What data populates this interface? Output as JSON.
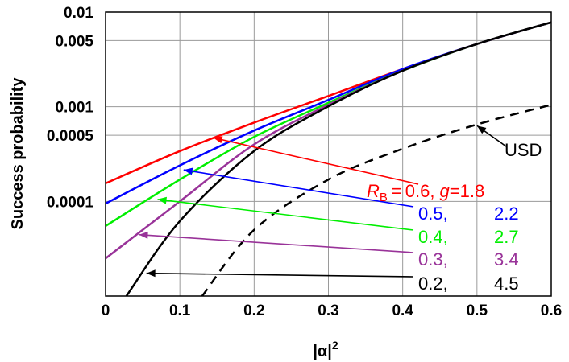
{
  "chart_data": {
    "type": "line",
    "xlabel": "|α|",
    "xlabel_sup": "2",
    "ylabel": "Success probability",
    "xlim": [
      0,
      0.6
    ],
    "ylim": [
      1e-05,
      0.01
    ],
    "y_scale": "log",
    "grid": true,
    "x_ticks": [
      "0",
      "0.1",
      "0.2",
      "0.3",
      "0.4",
      "0.5",
      "0.6"
    ],
    "y_ticks": [
      {
        "value": 0.01,
        "label": "0.01"
      },
      {
        "value": 0.005,
        "label": "0.005"
      },
      {
        "value": 0.001,
        "label": "0.001"
      },
      {
        "value": 0.0005,
        "label": "0.0005"
      },
      {
        "value": 0.0001,
        "label": "0.0001"
      }
    ],
    "series": [
      {
        "R_B": "0.6",
        "g": "1.8",
        "color": "#ff0000",
        "x": [
          0,
          0.1,
          0.2,
          0.3,
          0.4,
          0.5,
          0.6
        ],
        "y": [
          0.000155,
          0.00034,
          0.00068,
          0.0013,
          0.0025,
          0.0046,
          0.0078
        ]
      },
      {
        "R_B": "0.5",
        "g": "2.2",
        "color": "#0000ff",
        "x": [
          0,
          0.1,
          0.2,
          0.3,
          0.4,
          0.5,
          0.6
        ],
        "y": [
          9.5e-05,
          0.00024,
          0.00056,
          0.00118,
          0.0025,
          0.0046,
          0.0078
        ]
      },
      {
        "R_B": "0.4",
        "g": "2.7",
        "color": "#00ee00",
        "x": [
          0,
          0.1,
          0.2,
          0.3,
          0.4,
          0.5,
          0.6
        ],
        "y": [
          5.5e-05,
          0.00017,
          0.00048,
          0.0011,
          0.0024,
          0.0046,
          0.0078
        ]
      },
      {
        "R_B": "0.3",
        "g": "3.4",
        "color": "#993399",
        "x": [
          0,
          0.1,
          0.2,
          0.3,
          0.4,
          0.5,
          0.6
        ],
        "y": [
          2.5e-05,
          0.0001,
          0.0004,
          0.00105,
          0.0024,
          0.0046,
          0.0078
        ]
      },
      {
        "R_B": "0.2",
        "g": "4.5",
        "color": "#000000",
        "x": [
          0.028,
          0.1,
          0.2,
          0.3,
          0.4,
          0.5,
          0.6
        ],
        "y": [
          1e-05,
          6.2e-05,
          0.00034,
          0.00101,
          0.0024,
          0.0046,
          0.0078
        ]
      },
      {
        "name": "USD",
        "color": "#000000",
        "dashed": true,
        "x": [
          0.13,
          0.2,
          0.3,
          0.4,
          0.5,
          0.6
        ],
        "y": [
          1e-05,
          5e-05,
          0.00017,
          0.00036,
          0.00065,
          0.00105
        ]
      }
    ],
    "annotations": {
      "usd_label": "USD",
      "rb_symbol": "R",
      "rb_subscript": "B",
      "equals": "=",
      "g_symbol": "g",
      "comma": ","
    },
    "arrow_targets": [
      {
        "x": 0.145,
        "y": 0.00047
      },
      {
        "x": 0.105,
        "y": 0.000215
      },
      {
        "x": 0.07,
        "y": 0.000105
      },
      {
        "x": 0.045,
        "y": 4.45e-05
      },
      {
        "x": 0.055,
        "y": 1.74e-05
      }
    ],
    "usd_arrow_target": {
      "x": 0.5,
      "y": 0.00063
    }
  }
}
